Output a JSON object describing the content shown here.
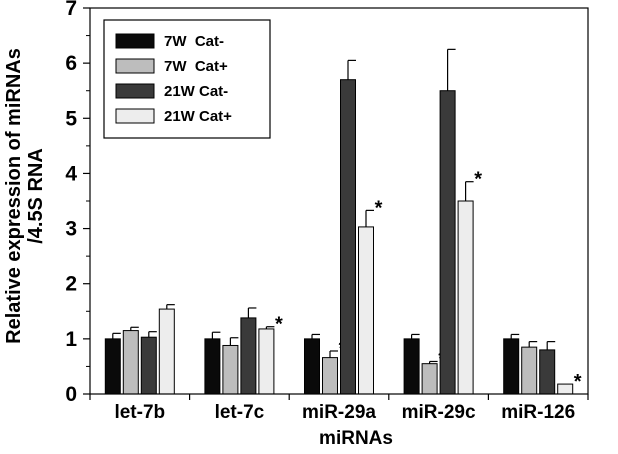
{
  "chart_data": {
    "type": "bar",
    "categories": [
      "let-7b",
      "let-7c",
      "miR-29a",
      "miR-29c",
      "miR-126"
    ],
    "series": [
      {
        "name": "7W  Cat-",
        "color": "#0a0a0a",
        "values": [
          1.0,
          1.0,
          1.0,
          1.0,
          1.0
        ],
        "errors": [
          0.1,
          0.12,
          0.08,
          0.08,
          0.08
        ],
        "significant": [
          false,
          false,
          false,
          false,
          false
        ]
      },
      {
        "name": "7W  Cat+",
        "color": "#bdbdbd",
        "values": [
          1.15,
          0.88,
          0.66,
          0.55,
          0.85
        ],
        "errors": [
          0.06,
          0.14,
          0.12,
          0.04,
          0.1
        ],
        "significant": [
          false,
          false,
          true,
          true,
          false
        ]
      },
      {
        "name": "21W Cat-",
        "color": "#3a3a3a",
        "values": [
          1.03,
          1.38,
          5.7,
          5.5,
          0.8
        ],
        "errors": [
          0.1,
          0.18,
          0.35,
          0.75,
          0.15
        ],
        "significant": [
          false,
          false,
          false,
          false,
          false
        ]
      },
      {
        "name": "21W Cat+",
        "color": "#ededed",
        "values": [
          1.54,
          1.18,
          3.03,
          3.5,
          0.18
        ],
        "errors": [
          0.08,
          0.04,
          0.3,
          0.35,
          0.0
        ],
        "significant": [
          false,
          true,
          true,
          true,
          true
        ]
      }
    ],
    "significance_marker": "*",
    "ylim": [
      0,
      7
    ],
    "yticks": [
      "0",
      "1",
      "2",
      "3",
      "4",
      "5",
      "6",
      "7"
    ],
    "ylabel_lines": [
      "Relative expression of miRNAs",
      "/4.5S RNA"
    ],
    "xlabel": "miRNAs",
    "legend_position": "top-left",
    "grid": false
  }
}
